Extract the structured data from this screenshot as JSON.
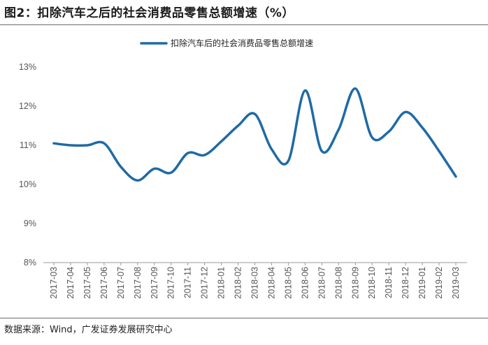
{
  "figure": {
    "title": "图2：扣除汽车之后的社会消费品零售总额增速（%）",
    "source": "数据来源：Wind，广发证券发展研究中心"
  },
  "chart_data": {
    "type": "line",
    "title": "",
    "xlabel": "",
    "ylabel": "",
    "categories": [
      "2017-03",
      "2017-04",
      "2017-05",
      "2017-06",
      "2017-07",
      "2017-08",
      "2017-09",
      "2017-10",
      "2017-11",
      "2017-12",
      "2018-01",
      "2018-02",
      "2018-03",
      "2018-04",
      "2018-05",
      "2018-06",
      "2018-07",
      "2018-08",
      "2018-09",
      "2018-10",
      "2018-11",
      "2018-12",
      "2019-01",
      "2019-02",
      "2019-03"
    ],
    "y_tick_labels": [
      "13%",
      "12%",
      "11%",
      "10%",
      "9%",
      "8%"
    ],
    "ylim": [
      8,
      13
    ],
    "grid": false,
    "legend_position": "top-center",
    "series": [
      {
        "name": "扣除汽车后的社会消费品零售总额增速",
        "color": "#1f6aa5",
        "values": [
          11.05,
          11.0,
          11.0,
          11.05,
          10.45,
          10.1,
          10.4,
          10.3,
          10.8,
          10.75,
          11.1,
          11.5,
          11.8,
          10.9,
          10.6,
          12.4,
          10.85,
          11.4,
          12.45,
          11.2,
          11.35,
          11.85,
          11.45,
          10.85,
          10.2
        ]
      }
    ]
  }
}
